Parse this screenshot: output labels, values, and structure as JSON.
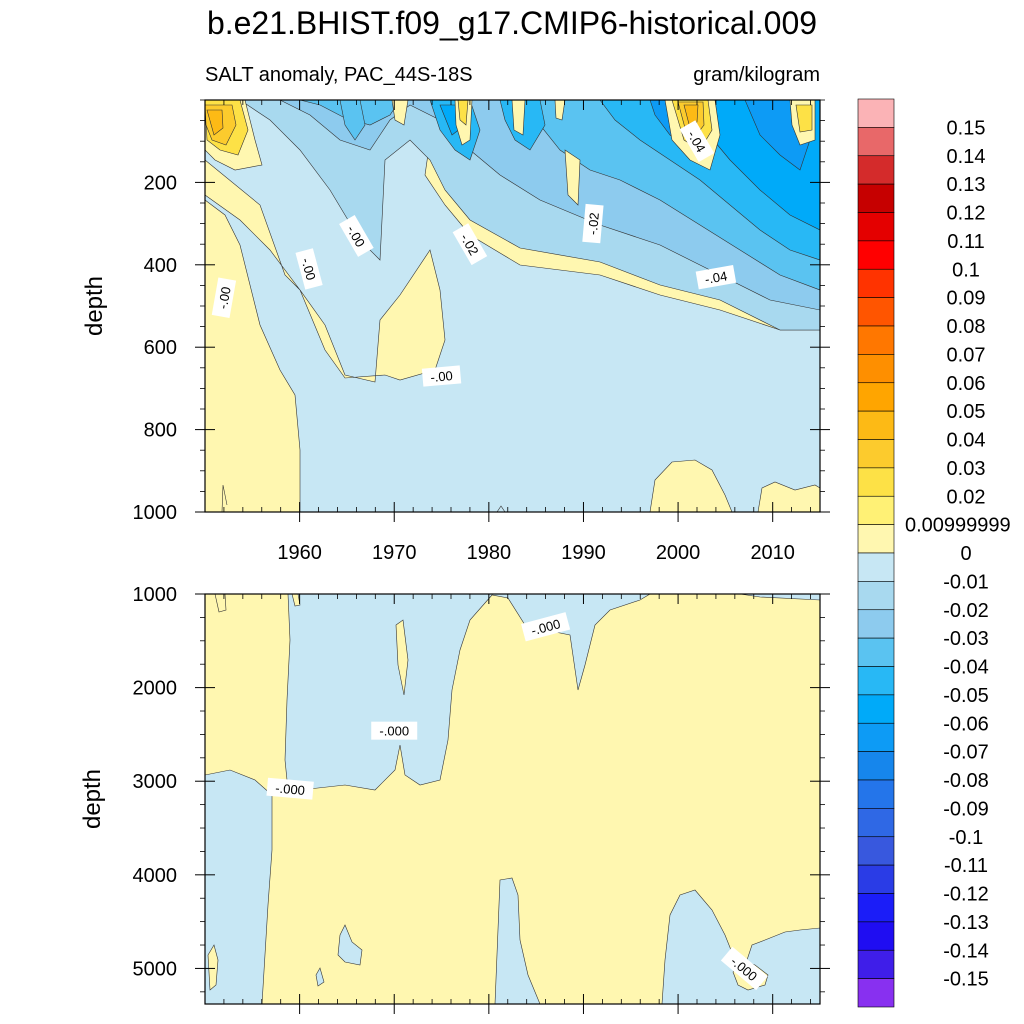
{
  "title": "b.e21.BHIST.f09_g17.CMIP6-historical.009",
  "left_subtitle": "SALT anomaly, PAC_44S-18S",
  "right_subtitle": "gram/kilogram",
  "chart_data": [
    {
      "type": "heatmap",
      "panel": "upper",
      "ylabel": "depth",
      "x_ticks": [
        1960,
        1970,
        1980,
        1990,
        2000,
        2010
      ],
      "xlim": [
        1950,
        2015
      ],
      "y_ticks": [
        200,
        400,
        600,
        800,
        1000
      ],
      "ylim": [
        0,
        1000
      ],
      "y_reversed": true,
      "contour_labels": [
        {
          "text": "-.00",
          "x": 1952,
          "y": 480,
          "rot": -80
        },
        {
          "text": "-.00",
          "x": 1961,
          "y": 410,
          "rot": 75
        },
        {
          "text": "-.00",
          "x": 1966,
          "y": 330,
          "rot": 60
        },
        {
          "text": "-.00",
          "x": 1975,
          "y": 670,
          "rot": -5
        },
        {
          "text": "-.02",
          "x": 1978,
          "y": 350,
          "rot": 60
        },
        {
          "text": "-.02",
          "x": 1991,
          "y": 300,
          "rot": -85
        },
        {
          "text": "-.04",
          "x": 2002,
          "y": 100,
          "rot": 60
        },
        {
          "text": "-.04",
          "x": 2004,
          "y": 430,
          "rot": -10
        }
      ],
      "regions": [
        {
          "level": 0.02,
          "x": [
            1951,
            1952.5,
            1953.5,
            1952,
            1951
          ],
          "y": [
            10,
            5,
            60,
            110,
            110
          ]
        },
        {
          "level": 0.03,
          "x": [
            1951,
            1952
          ],
          "y": [
            20,
            50
          ]
        },
        {
          "level": -0.04,
          "x": [
            1968,
            1975
          ],
          "y": [
            10,
            140
          ]
        },
        {
          "level": -0.04,
          "x": [
            1982,
            1995
          ],
          "y": [
            10,
            150
          ]
        },
        {
          "level": -0.05,
          "x": [
            1997,
            2015
          ],
          "y": [
            10,
            450
          ]
        },
        {
          "level": 0.03,
          "x": [
            1999.5,
            2002.5
          ],
          "y": [
            10,
            130
          ]
        },
        {
          "level": 0.01,
          "x": [
            1996,
            2002
          ],
          "y": [
            800,
            1000
          ]
        },
        {
          "level": 0.01,
          "x": [
            2008,
            2015
          ],
          "y": [
            900,
            1000
          ]
        }
      ]
    },
    {
      "type": "heatmap",
      "panel": "lower",
      "ylabel": "depth",
      "x_ticks": [
        1960,
        1970,
        1980,
        1990,
        2000,
        2010
      ],
      "xlim": [
        1950,
        2015
      ],
      "y_ticks": [
        1000,
        2000,
        3000,
        4000,
        5000
      ],
      "ylim": [
        1000,
        5380
      ],
      "y_reversed": true,
      "contour_labels": [
        {
          "text": "-.000",
          "x": 1986,
          "y": 1350,
          "rot": -15
        },
        {
          "text": "-.000",
          "x": 1970,
          "y": 2460,
          "rot": 0
        },
        {
          "text": "-.000",
          "x": 1959,
          "y": 3080,
          "rot": 5
        },
        {
          "text": "-.000",
          "x": 2007,
          "y": 5000,
          "rot": 40
        }
      ]
    }
  ],
  "colorbar": {
    "levels": [
      "0.15",
      "0.14",
      "0.13",
      "0.12",
      "0.11",
      "0.1",
      "0.09",
      "0.08",
      "0.07",
      "0.06",
      "0.05",
      "0.04",
      "0.03",
      "0.02",
      "0.00999999",
      "0",
      "-0.01",
      "-0.02",
      "-0.03",
      "-0.04",
      "-0.05",
      "-0.06",
      "-0.07",
      "-0.08",
      "-0.09",
      "-0.1",
      "-0.11",
      "-0.12",
      "-0.13",
      "-0.14",
      "-0.15"
    ],
    "colors": [
      "#fbb3b6",
      "#e86869",
      "#d42b2b",
      "#c60000",
      "#e40000",
      "#ff0000",
      "#ff3300",
      "#ff5500",
      "#ff7700",
      "#fe8f00",
      "#ffa500",
      "#fdba15",
      "#fccb2d",
      "#fde146",
      "#fff175",
      "#fff7b0",
      "#c7e7f4",
      "#a8d9ef",
      "#8dcbee",
      "#5ac3f1",
      "#28b8f5",
      "#00aaf9",
      "#0d9bf5",
      "#1686ec",
      "#2475ea",
      "#2f68e5",
      "#3858de",
      "#2a3ce6",
      "#1b1df8",
      "#1f0df2",
      "#3f1ee9",
      "#8830f0"
    ]
  }
}
